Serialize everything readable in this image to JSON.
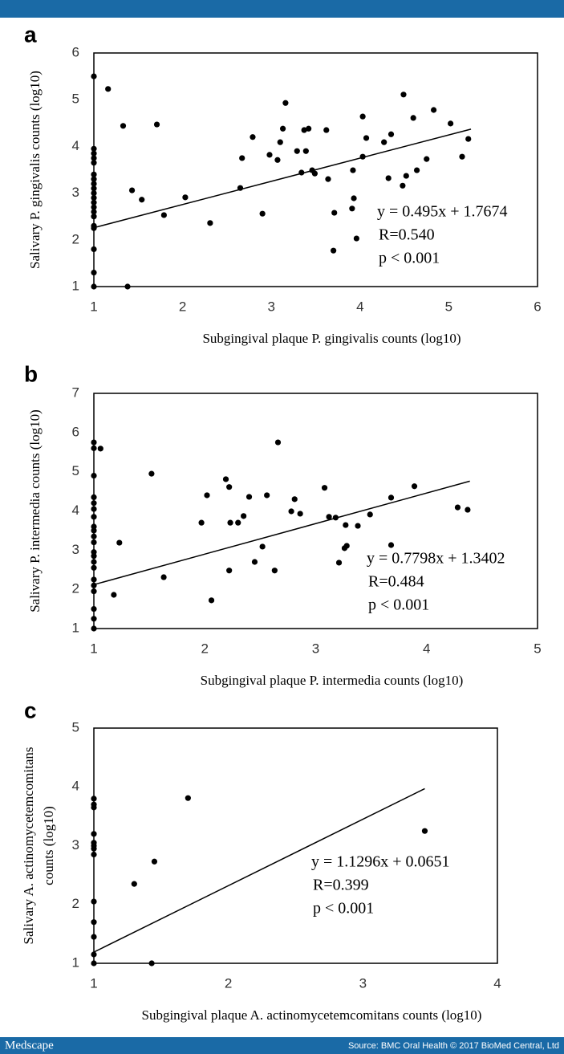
{
  "chart_data": [
    {
      "type": "scatter",
      "panel": "a",
      "xlabel": "Subgingival plaque P. gingivalis counts (log10)",
      "ylabel": [
        "Salivary P. gingivalis counts (log10)"
      ],
      "xlim": [
        1,
        6
      ],
      "ylim": [
        1,
        6
      ],
      "xticks": [
        1,
        2,
        3,
        4,
        5,
        6
      ],
      "yticks": [
        1,
        2,
        3,
        4,
        5,
        6
      ],
      "color": "#000000",
      "x": [
        1,
        1,
        1,
        1,
        1,
        1,
        1,
        1,
        1,
        1,
        1,
        1,
        1,
        1,
        1,
        1,
        1,
        1,
        1,
        1,
        1.16,
        1.33,
        1.71,
        1.43,
        1.54,
        1.79,
        2.03,
        2.31,
        1.38,
        2.65,
        2.67,
        2.79,
        2.9,
        2.98,
        3.07,
        3.1,
        3.13,
        3.16,
        3.29,
        3.34,
        3.37,
        3.39,
        3.42,
        3.46,
        3.49,
        3.62,
        3.64,
        3.71,
        3.7,
        3.92,
        3.93,
        3.91,
        3.96,
        4.03,
        4.07,
        4.03,
        4.27,
        4.35,
        4.32,
        4.49,
        4.48,
        4.52,
        4.6,
        4.64,
        4.75,
        4.83,
        5.02,
        5.15,
        5.22
      ],
      "y": [
        5.5,
        3.95,
        3.85,
        3.75,
        3.65,
        3.4,
        3.3,
        3.2,
        3.1,
        3.0,
        2.9,
        2.8,
        2.7,
        2.6,
        2.5,
        2.3,
        2.25,
        1.8,
        1.3,
        1.0,
        5.23,
        4.44,
        4.47,
        3.06,
        2.86,
        2.53,
        2.91,
        2.36,
        1.0,
        3.11,
        3.75,
        4.2,
        2.56,
        3.82,
        3.71,
        4.09,
        4.38,
        4.93,
        3.9,
        3.44,
        4.35,
        3.9,
        4.38,
        3.49,
        3.42,
        4.35,
        3.3,
        2.58,
        1.77,
        3.49,
        2.89,
        2.67,
        2.03,
        4.64,
        4.18,
        3.78,
        4.09,
        4.26,
        3.32,
        5.11,
        3.16,
        3.37,
        4.61,
        3.49,
        3.73,
        4.78,
        4.49,
        3.78,
        4.16
      ],
      "trend": {
        "x": [
          1,
          5.25
        ],
        "y": [
          2.26,
          4.37
        ]
      },
      "annotations": [
        "y = 0.495x + 1.7674",
        "R=0.540",
        "p < 0.001"
      ]
    },
    {
      "type": "scatter",
      "panel": "b",
      "xlabel": "Subgingival plaque P. intermedia counts (log10)",
      "ylabel": [
        "Salivary P. intermedia counts (log10)"
      ],
      "xlim": [
        1,
        5
      ],
      "ylim": [
        1,
        7
      ],
      "xticks": [
        1,
        2,
        3,
        4,
        5
      ],
      "yticks": [
        1,
        2,
        3,
        4,
        5,
        6,
        7
      ],
      "color": "#000000",
      "x": [
        1,
        1,
        1,
        1,
        1,
        1,
        1,
        1,
        1,
        1,
        1,
        1,
        1,
        1,
        1,
        1,
        1,
        1,
        1,
        1,
        1,
        1.06,
        1.23,
        1.18,
        1.52,
        1.63,
        1.97,
        2.02,
        2.06,
        2.19,
        2.22,
        2.23,
        2.3,
        2.22,
        2.35,
        2.4,
        2.45,
        2.52,
        2.56,
        2.63,
        2.66,
        2.78,
        2.81,
        2.86,
        3.08,
        3.12,
        3.18,
        3.21,
        3.27,
        3.28,
        3.26,
        3.38,
        3.49,
        3.68,
        3.68,
        3.89,
        4.28,
        4.37
      ],
      "y": [
        5.75,
        5.6,
        4.9,
        4.35,
        4.2,
        4.05,
        3.85,
        3.6,
        3.5,
        3.35,
        3.2,
        2.95,
        2.85,
        2.7,
        2.55,
        2.25,
        2.1,
        1.95,
        1.5,
        1.25,
        1.0,
        5.59,
        3.19,
        1.86,
        4.95,
        2.31,
        3.7,
        4.4,
        1.72,
        4.81,
        4.61,
        3.7,
        3.7,
        2.48,
        3.87,
        4.36,
        2.7,
        3.09,
        4.4,
        2.48,
        5.75,
        3.99,
        4.3,
        3.93,
        4.59,
        3.85,
        3.83,
        2.68,
        3.64,
        3.11,
        3.05,
        3.62,
        3.91,
        4.34,
        3.13,
        4.63,
        4.09,
        4.03
      ],
      "trend": {
        "x": [
          1,
          4.39
        ],
        "y": [
          2.12,
          4.76
        ]
      },
      "annotations": [
        "y = 0.7798x + 1.3402",
        "R=0.484",
        "p < 0.001"
      ]
    },
    {
      "type": "scatter",
      "panel": "c",
      "xlabel": "Subgingival plaque A. actinomycetemcomitans counts (log10)",
      "ylabel": [
        "Salivary A. actinomycetemcomitans",
        "counts (log10)"
      ],
      "xlim": [
        1,
        4
      ],
      "ylim": [
        1,
        5
      ],
      "xticks": [
        1,
        2,
        3,
        4
      ],
      "yticks": [
        1,
        2,
        3,
        4,
        5
      ],
      "color": "#000000",
      "x": [
        1,
        1,
        1,
        1,
        1,
        1,
        1,
        1,
        1,
        1,
        1,
        1,
        1,
        1.3,
        1.45,
        1.7,
        1.43,
        3.46
      ],
      "y": [
        3.8,
        3.7,
        3.65,
        3.2,
        3.05,
        3.0,
        2.95,
        2.85,
        2.05,
        1.7,
        1.45,
        1.15,
        1.0,
        2.35,
        2.73,
        3.81,
        1.0,
        3.25
      ],
      "trend": {
        "x": [
          1,
          3.46
        ],
        "y": [
          1.19,
          3.97
        ]
      },
      "annotations": [
        "y = 1.1296x + 0.0651",
        "R=0.399",
        "p < 0.001"
      ]
    }
  ],
  "footer": {
    "brand": "Medscape",
    "source": "Source: BMC Oral Health © 2017 BioMed Central, Ltd"
  }
}
